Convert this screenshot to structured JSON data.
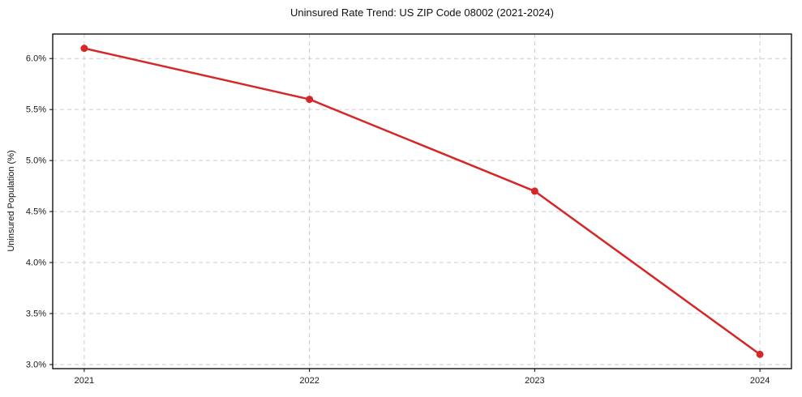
{
  "chart": {
    "title": "Uninsured Rate Trend: US ZIP Code 08002 (2021-2024)",
    "ylabel": "Uninsured Population (%)"
  },
  "chart_data": {
    "type": "line",
    "title": "Uninsured Rate Trend: US ZIP Code 08002 (2021-2024)",
    "xlabel": "",
    "ylabel": "Uninsured Population (%)",
    "x": [
      2021,
      2022,
      2023,
      2024
    ],
    "xtick_labels": [
      "2021",
      "2022",
      "2023",
      "2024"
    ],
    "series": [
      {
        "name": "Uninsured Rate",
        "values": [
          6.1,
          5.6,
          4.7,
          3.1
        ]
      }
    ],
    "yticks": [
      3.0,
      3.5,
      4.0,
      4.5,
      5.0,
      5.5,
      6.0
    ],
    "ytick_labels": [
      "3.0%",
      "3.5%",
      "4.0%",
      "4.5%",
      "5.0%",
      "5.5%",
      "6.0%"
    ],
    "xlim": [
      2020.86,
      2024.14
    ],
    "ylim": [
      2.96,
      6.24
    ],
    "grid": true,
    "legend": "none",
    "line_color": "#d62728",
    "marker_color": "#d62728",
    "grid_color": "#cccccc",
    "spine_color": "#000000",
    "background_color": "#ffffff",
    "line_width": 2.5,
    "marker_radius": 4.5
  }
}
